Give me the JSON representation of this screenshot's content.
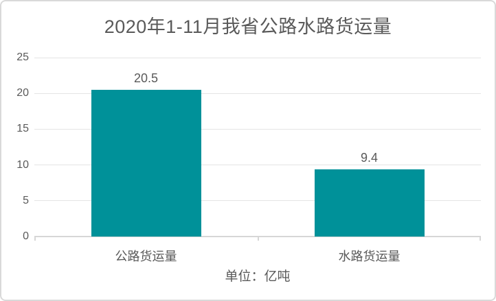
{
  "page": {
    "background": "#ffffff",
    "border_color": "#d9d9d9"
  },
  "chart_data": {
    "type": "bar",
    "title": "2020年1-11月我省公路水路货运量",
    "categories": [
      "公路货运量",
      "水路货运量"
    ],
    "values": [
      20.5,
      9.4
    ],
    "value_labels": [
      "20.5",
      "9.4"
    ],
    "unit_note": "单位：亿吨",
    "y_ticks": [
      25,
      20,
      15,
      10,
      5,
      0
    ],
    "ylim": [
      0,
      25
    ],
    "grid": true,
    "legend_position": "none",
    "bar_color": "#009199",
    "text_color": "#595959",
    "gridline_color": "#e4e4e4",
    "axis_color": "#d6d6d6"
  }
}
